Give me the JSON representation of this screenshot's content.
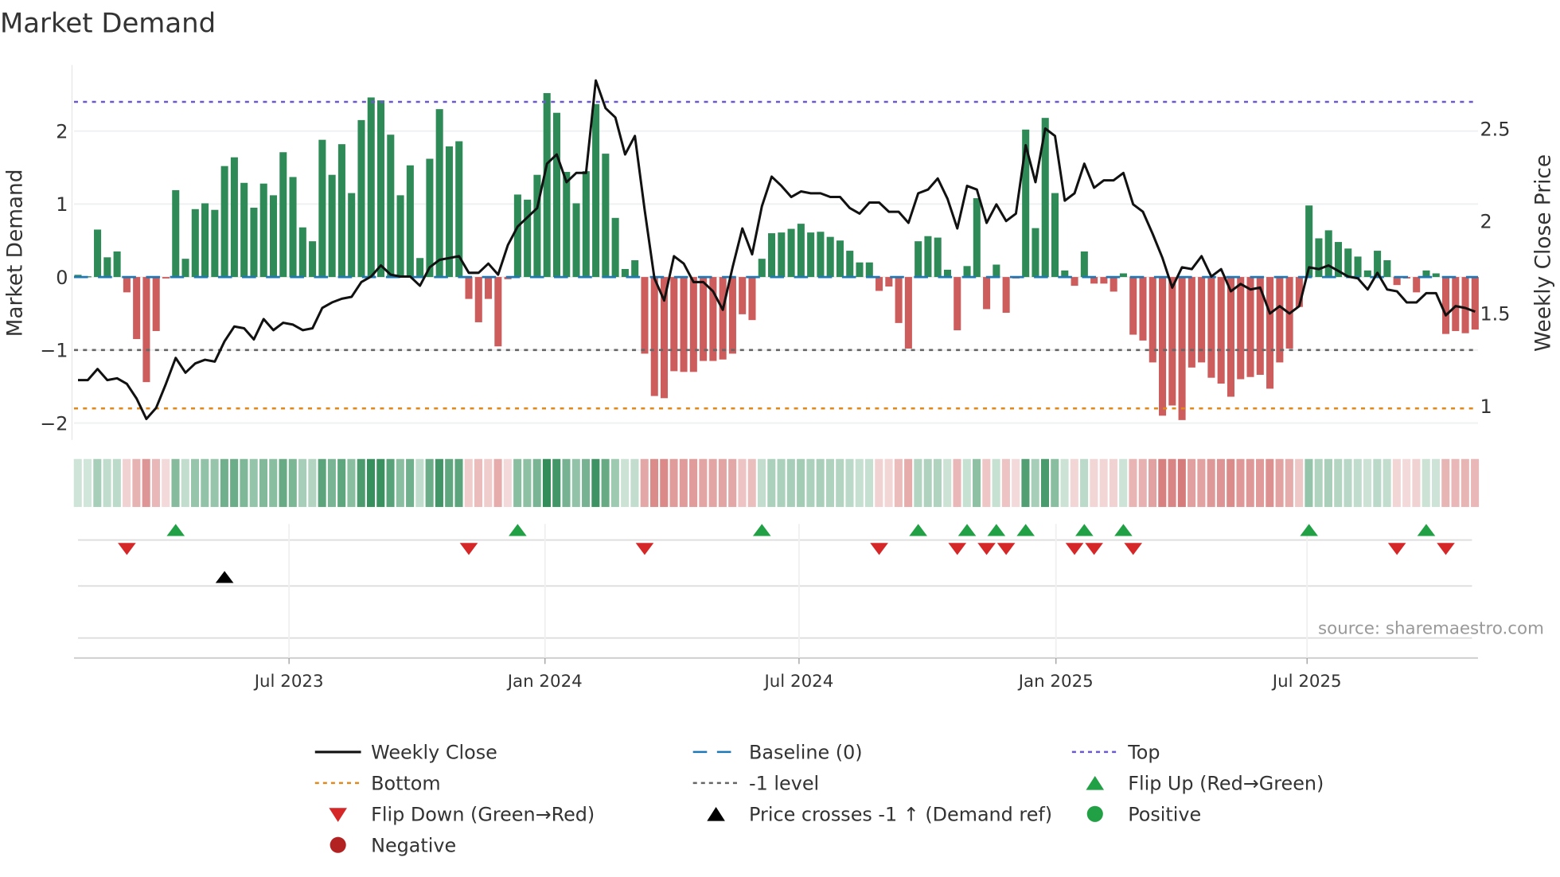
{
  "chart_data": {
    "type": "bar+line",
    "title": "Market Demand",
    "ylabel_left": "Market Demand",
    "ylabel_right": "Weekly Close Price",
    "ylim_left": [
      -2.2,
      2.85
    ],
    "ylim_right": [
      0.89,
      2.88
    ],
    "left_ticks": [
      {
        "v": 2,
        "label": "2"
      },
      {
        "v": 1,
        "label": "1"
      },
      {
        "v": 0,
        "label": "0"
      },
      {
        "v": -1,
        "label": "−1"
      },
      {
        "v": -2,
        "label": "−2"
      }
    ],
    "right_ticks": [
      {
        "v": 2.5,
        "label": "2.5"
      },
      {
        "v": 2,
        "label": "2"
      },
      {
        "v": 1.5,
        "label": "1.5"
      },
      {
        "v": 1,
        "label": "1"
      }
    ],
    "x_ticks": [
      {
        "week": 21.6,
        "label": "Jul 2023"
      },
      {
        "week": 47.8,
        "label": "Jan 2024"
      },
      {
        "week": 73.8,
        "label": "Jul 2024"
      },
      {
        "week": 100.1,
        "label": "Jan 2025"
      },
      {
        "week": 125.8,
        "label": "Jul 2025"
      }
    ],
    "reference_levels": {
      "top": 2.4,
      "baseline": 0,
      "minus_one": -1,
      "bottom": -1.8
    },
    "demand": [
      0.03,
      0.01,
      0.65,
      0.27,
      0.35,
      -0.21,
      -0.85,
      -1.44,
      -0.74,
      -0.02,
      1.19,
      0.25,
      0.93,
      1.01,
      0.92,
      1.52,
      1.64,
      1.29,
      0.95,
      1.28,
      1.12,
      1.71,
      1.37,
      0.68,
      0.49,
      1.88,
      1.4,
      1.82,
      1.15,
      2.15,
      2.46,
      2.42,
      1.95,
      1.12,
      1.53,
      0.26,
      1.62,
      2.3,
      1.79,
      1.86,
      -0.3,
      -0.62,
      -0.3,
      -0.95,
      -0.03,
      1.13,
      1.06,
      1.4,
      2.52,
      2.25,
      1.44,
      1.01,
      1.45,
      2.37,
      1.69,
      0.81,
      0.11,
      0.23,
      -1.05,
      -1.63,
      -1.66,
      -1.29,
      -1.3,
      -1.3,
      -1.15,
      -1.15,
      -1.13,
      -1.05,
      -0.51,
      -0.59,
      0.25,
      0.6,
      0.61,
      0.66,
      0.73,
      0.61,
      0.62,
      0.55,
      0.5,
      0.36,
      0.2,
      0.2,
      -0.19,
      -0.13,
      -0.63,
      -0.98,
      0.49,
      0.56,
      0.54,
      0.1,
      -0.73,
      0.15,
      1.08,
      -0.44,
      0.17,
      -0.49,
      -0.02,
      2.02,
      0.67,
      2.18,
      1.15,
      0.09,
      -0.12,
      0.35,
      -0.09,
      -0.09,
      -0.2,
      0.05,
      -0.79,
      -0.87,
      -1.17,
      -1.9,
      -1.76,
      -1.96,
      -1.24,
      -1.17,
      -1.38,
      -1.46,
      -1.64,
      -1.4,
      -1.37,
      -1.34,
      -1.53,
      -1.17,
      -0.98,
      -0.41,
      0.98,
      0.53,
      0.64,
      0.48,
      0.39,
      0.28,
      0.09,
      0.36,
      0.23,
      -0.11,
      -0.02,
      -0.21,
      0.09,
      0.05,
      -0.78,
      -0.74,
      -0.77,
      -0.72
    ],
    "weekly_close": [
      1.14,
      1.14,
      1.2,
      1.14,
      1.15,
      1.12,
      1.04,
      0.93,
      0.99,
      1.12,
      1.26,
      1.18,
      1.23,
      1.25,
      1.24,
      1.35,
      1.43,
      1.42,
      1.36,
      1.47,
      1.41,
      1.45,
      1.44,
      1.41,
      1.42,
      1.53,
      1.56,
      1.58,
      1.59,
      1.67,
      1.7,
      1.76,
      1.71,
      1.7,
      1.7,
      1.65,
      1.75,
      1.79,
      1.8,
      1.81,
      1.72,
      1.72,
      1.77,
      1.71,
      1.87,
      1.97,
      2.02,
      2.07,
      2.31,
      2.36,
      2.21,
      2.26,
      2.26,
      2.76,
      2.61,
      2.56,
      2.36,
      2.46,
      2.06,
      1.69,
      1.57,
      1.81,
      1.77,
      1.67,
      1.67,
      1.62,
      1.52,
      1.75,
      1.96,
      1.82,
      2.08,
      2.24,
      2.19,
      2.13,
      2.16,
      2.15,
      2.15,
      2.13,
      2.13,
      2.07,
      2.04,
      2.1,
      2.1,
      2.05,
      2.05,
      1.99,
      2.15,
      2.17,
      2.23,
      2.12,
      1.96,
      2.19,
      2.17,
      1.99,
      2.09,
      2.0,
      2.04,
      2.41,
      2.21,
      2.5,
      2.46,
      2.11,
      2.15,
      2.31,
      2.18,
      2.22,
      2.22,
      2.26,
      2.09,
      2.05,
      1.93,
      1.8,
      1.64,
      1.75,
      1.74,
      1.81,
      1.7,
      1.74,
      1.62,
      1.66,
      1.63,
      1.64,
      1.5,
      1.54,
      1.5,
      1.54,
      1.75,
      1.74,
      1.76,
      1.73,
      1.7,
      1.69,
      1.63,
      1.72,
      1.63,
      1.62,
      1.56,
      1.56,
      1.61,
      1.61,
      1.49,
      1.54,
      1.53,
      1.51
    ],
    "price_cross_weeks": [
      15
    ],
    "legend": [
      {
        "label": "Weekly Close",
        "kind": "line",
        "color": "#111111"
      },
      {
        "label": "Baseline (0)",
        "kind": "dash",
        "color": "#1f77b4"
      },
      {
        "label": "Top",
        "kind": "dot",
        "color": "#6a5acd"
      },
      {
        "label": "Bottom",
        "kind": "dot",
        "color": "#e08a1e"
      },
      {
        "label": "-1 level",
        "kind": "dot",
        "color": "#666666"
      },
      {
        "label": "Flip Up (Red→Green)",
        "kind": "tri-up",
        "color": "#22a045"
      },
      {
        "label": "Flip Down (Green→Red)",
        "kind": "tri-down",
        "color": "#d62728"
      },
      {
        "label": "Price crosses -1 ↑ (Demand ref)",
        "kind": "tri-up",
        "color": "#000000"
      },
      {
        "label": "Positive",
        "kind": "circle",
        "color": "#22a045"
      },
      {
        "label": "Negative",
        "kind": "circle",
        "color": "#b22222"
      }
    ],
    "colors": {
      "positive": "#2e8b57",
      "negative": "#cd5c5c"
    },
    "source": "source: sharemaestro.com"
  }
}
